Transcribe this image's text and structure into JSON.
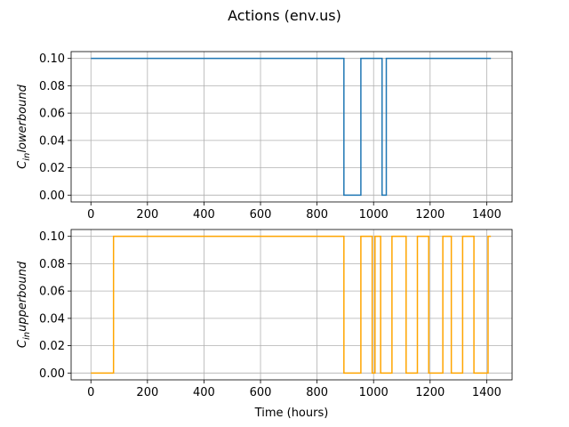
{
  "figure": {
    "title": "Actions (env.us)"
  },
  "colors": {
    "series_blue": "#1f77b4",
    "series_orange": "#ffa500"
  },
  "chart_data": [
    {
      "type": "line",
      "step": true,
      "xlabel": "",
      "ylabel": "C_in lower bound",
      "ylabel_main": "C",
      "ylabel_sub": "in",
      "ylabel_rest": "lowerbound",
      "xlim": [
        -70,
        1490
      ],
      "ylim": [
        -0.005,
        0.105
      ],
      "xticks": [
        0,
        200,
        400,
        600,
        800,
        1000,
        1200,
        1400
      ],
      "xtick_labels": [
        "0",
        "200",
        "400",
        "600",
        "800",
        "1000",
        "1200",
        "1400"
      ],
      "yticks": [
        0.0,
        0.02,
        0.04,
        0.06,
        0.08,
        0.1
      ],
      "ytick_labels": [
        "0.00",
        "0.02",
        "0.04",
        "0.06",
        "0.08",
        "0.10"
      ],
      "grid": true,
      "series": [
        {
          "name": "C_in lower bound",
          "color": "#1f77b4",
          "points": [
            [
              0,
              0.1
            ],
            [
              895,
              0.1
            ],
            [
              895,
              0.0
            ],
            [
              955,
              0.0
            ],
            [
              955,
              0.1
            ],
            [
              1030,
              0.1
            ],
            [
              1030,
              0.0
            ],
            [
              1045,
              0.0
            ],
            [
              1045,
              0.1
            ],
            [
              1415,
              0.1
            ]
          ]
        }
      ]
    },
    {
      "type": "line",
      "step": true,
      "xlabel": "Time (hours)",
      "ylabel": "C_in upper bound",
      "ylabel_main": "C",
      "ylabel_sub": "in",
      "ylabel_rest": "upperbound",
      "xlim": [
        -70,
        1490
      ],
      "ylim": [
        -0.005,
        0.105
      ],
      "xticks": [
        0,
        200,
        400,
        600,
        800,
        1000,
        1200,
        1400
      ],
      "xtick_labels": [
        "0",
        "200",
        "400",
        "600",
        "800",
        "1000",
        "1200",
        "1400"
      ],
      "yticks": [
        0.0,
        0.02,
        0.04,
        0.06,
        0.08,
        0.1
      ],
      "ytick_labels": [
        "0.00",
        "0.02",
        "0.04",
        "0.06",
        "0.08",
        "0.10"
      ],
      "grid": true,
      "series": [
        {
          "name": "C_in upper bound",
          "color": "#ffa500",
          "points": [
            [
              0,
              0.0
            ],
            [
              80,
              0.0
            ],
            [
              80,
              0.1
            ],
            [
              895,
              0.1
            ],
            [
              895,
              0.0
            ],
            [
              955,
              0.0
            ],
            [
              955,
              0.1
            ],
            [
              995,
              0.1
            ],
            [
              995,
              0.0
            ],
            [
              1005,
              0.0
            ],
            [
              1005,
              0.1
            ],
            [
              1025,
              0.1
            ],
            [
              1025,
              0.0
            ],
            [
              1065,
              0.0
            ],
            [
              1065,
              0.1
            ],
            [
              1115,
              0.1
            ],
            [
              1115,
              0.0
            ],
            [
              1155,
              0.0
            ],
            [
              1155,
              0.1
            ],
            [
              1195,
              0.1
            ],
            [
              1195,
              0.0
            ],
            [
              1245,
              0.0
            ],
            [
              1245,
              0.1
            ],
            [
              1275,
              0.1
            ],
            [
              1275,
              0.0
            ],
            [
              1315,
              0.0
            ],
            [
              1315,
              0.1
            ],
            [
              1355,
              0.1
            ],
            [
              1355,
              0.0
            ],
            [
              1405,
              0.0
            ],
            [
              1405,
              0.1
            ],
            [
              1415,
              0.1
            ]
          ]
        }
      ]
    }
  ]
}
